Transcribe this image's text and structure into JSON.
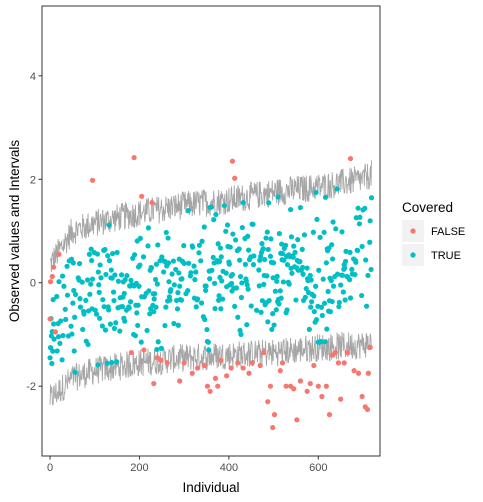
{
  "chart_data": {
    "type": "scatter",
    "xlabel": "Individual",
    "ylabel": "Observed values and Intervals",
    "xlim": [
      -18,
      738
    ],
    "ylim": [
      -3.35,
      5.35
    ],
    "x_ticks": [
      0,
      200,
      400,
      600
    ],
    "x_tick_labels": [
      "0",
      "200",
      "400",
      "600"
    ],
    "y_ticks": [
      -2,
      0,
      2,
      4
    ],
    "y_tick_labels": [
      "-2",
      "0",
      "2",
      "4"
    ],
    "grid": false,
    "n_individuals": 720,
    "legend": {
      "title": "Covered",
      "position": "right",
      "entries": [
        {
          "label": "FALSE",
          "color": "#F8766D"
        },
        {
          "label": "TRUE",
          "color": "#00BFC4"
        }
      ]
    },
    "interval_color": "#A6A6A6",
    "interval_band": {
      "upper": [
        [
          0,
          0.35
        ],
        [
          50,
          1.0
        ],
        [
          100,
          1.15
        ],
        [
          200,
          1.35
        ],
        [
          300,
          1.5
        ],
        [
          400,
          1.6
        ],
        [
          500,
          1.75
        ],
        [
          600,
          1.85
        ],
        [
          700,
          2.0
        ],
        [
          720,
          2.1
        ]
      ],
      "lower": [
        [
          0,
          -2.25
        ],
        [
          50,
          -1.85
        ],
        [
          100,
          -1.7
        ],
        [
          200,
          -1.55
        ],
        [
          300,
          -1.45
        ],
        [
          400,
          -1.4
        ],
        [
          500,
          -1.35
        ],
        [
          600,
          -1.25
        ],
        [
          700,
          -1.2
        ],
        [
          720,
          -1.15
        ]
      ]
    },
    "series": [
      {
        "name": "FALSE",
        "color": "#F8766D",
        "points": [
          [
            0,
            -0.7
          ],
          [
            1,
            0.02
          ],
          [
            5,
            0.12
          ],
          [
            8,
            0.3
          ],
          [
            12,
            -0.95
          ],
          [
            20,
            0.55
          ],
          [
            95,
            1.98
          ],
          [
            182,
            -1.35
          ],
          [
            188,
            2.42
          ],
          [
            205,
            1.67
          ],
          [
            210,
            -1.3
          ],
          [
            228,
            1.55
          ],
          [
            232,
            -1.95
          ],
          [
            240,
            -1.45
          ],
          [
            248,
            -1.5
          ],
          [
            262,
            -1.55
          ],
          [
            290,
            -1.9
          ],
          [
            300,
            -1.55
          ],
          [
            318,
            -1.75
          ],
          [
            330,
            -1.65
          ],
          [
            345,
            -1.6
          ],
          [
            352,
            -2.0
          ],
          [
            358,
            -2.1
          ],
          [
            370,
            -1.85
          ],
          [
            375,
            -2.0
          ],
          [
            382,
            -1.5
          ],
          [
            395,
            -1.8
          ],
          [
            405,
            -1.65
          ],
          [
            408,
            2.35
          ],
          [
            413,
            2.02
          ],
          [
            420,
            -1.55
          ],
          [
            432,
            -1.65
          ],
          [
            445,
            -1.75
          ],
          [
            452,
            -1.55
          ],
          [
            470,
            -1.6
          ],
          [
            478,
            -1.35
          ],
          [
            487,
            -2.3
          ],
          [
            493,
            -2.0
          ],
          [
            498,
            -2.8
          ],
          [
            502,
            -2.55
          ],
          [
            515,
            -1.7
          ],
          [
            520,
            -1.55
          ],
          [
            528,
            -2.0
          ],
          [
            538,
            -2.0
          ],
          [
            545,
            -2.05
          ],
          [
            552,
            -2.65
          ],
          [
            560,
            -1.9
          ],
          [
            575,
            -2.1
          ],
          [
            582,
            -1.95
          ],
          [
            590,
            -1.6
          ],
          [
            600,
            -2.0
          ],
          [
            608,
            -2.2
          ],
          [
            618,
            -2.0
          ],
          [
            625,
            -2.55
          ],
          [
            632,
            -1.4
          ],
          [
            638,
            -1.35
          ],
          [
            645,
            -1.55
          ],
          [
            650,
            -2.25
          ],
          [
            658,
            -1.55
          ],
          [
            665,
            -1.35
          ],
          [
            672,
            2.4
          ],
          [
            680,
            -1.7
          ],
          [
            690,
            -1.75
          ],
          [
            698,
            -2.2
          ],
          [
            705,
            -2.4
          ],
          [
            710,
            -2.45
          ],
          [
            712,
            -1.75
          ],
          [
            716,
            -1.25
          ]
        ]
      }
    ]
  }
}
